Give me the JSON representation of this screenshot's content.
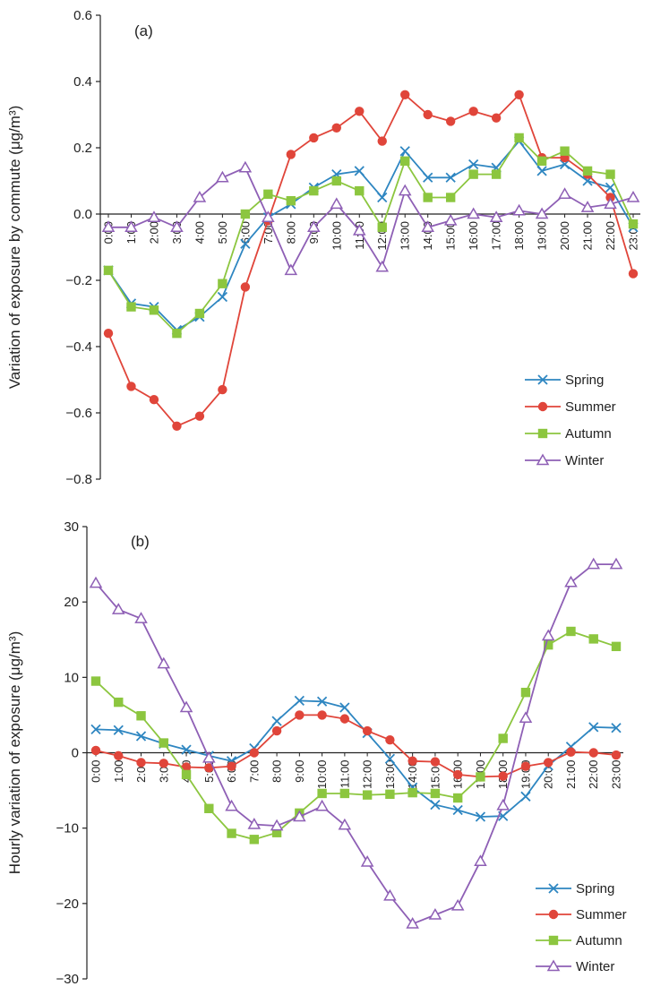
{
  "chart_data": [
    {
      "type": "line",
      "panel_label": "(a)",
      "title": "",
      "xlabel": "",
      "ylabel": "Variation of exposure by commute (μg/m³)",
      "ylim": [
        -0.8,
        0.6
      ],
      "yticks": [
        0.6,
        0.4,
        0.2,
        0.0,
        -0.2,
        -0.4,
        -0.6,
        -0.8
      ],
      "ytick_labels": [
        "0.6",
        "0.4",
        "0.2",
        "0.0",
        "−0.2",
        "−0.4",
        "−0.6",
        "−0.8"
      ],
      "categories": [
        "0:00",
        "1:00",
        "2:00",
        "3:00",
        "4:00",
        "5:00",
        "6:00",
        "7:00",
        "8:00",
        "9:00",
        "10:00",
        "11:00",
        "12:00",
        "13:00",
        "14:00",
        "15:00",
        "16:00",
        "17:00",
        "18:00",
        "19:00",
        "20:00",
        "21:00",
        "22:00",
        "23:00"
      ],
      "legend_position": "bottom-right",
      "grid": false,
      "series": [
        {
          "name": "Spring",
          "color": "#2e86c1",
          "marker": "x",
          "values": [
            -0.17,
            -0.27,
            -0.28,
            -0.35,
            -0.31,
            -0.25,
            -0.09,
            -0.01,
            0.03,
            0.08,
            0.12,
            0.13,
            0.05,
            0.19,
            0.11,
            0.11,
            0.15,
            0.14,
            0.22,
            0.13,
            0.15,
            0.1,
            0.08,
            -0.04
          ]
        },
        {
          "name": "Summer",
          "color": "#e0453a",
          "marker": "circle",
          "values": [
            -0.36,
            -0.52,
            -0.56,
            -0.64,
            -0.61,
            -0.53,
            -0.22,
            -0.02,
            0.18,
            0.23,
            0.26,
            0.31,
            0.22,
            0.36,
            0.3,
            0.28,
            0.31,
            0.29,
            0.36,
            0.17,
            0.17,
            0.12,
            0.05,
            -0.18
          ]
        },
        {
          "name": "Autumn",
          "color": "#8cc63f",
          "marker": "square",
          "values": [
            -0.17,
            -0.28,
            -0.29,
            -0.36,
            -0.3,
            -0.21,
            0.0,
            0.06,
            0.04,
            0.07,
            0.1,
            0.07,
            -0.04,
            0.16,
            0.05,
            0.05,
            0.12,
            0.12,
            0.23,
            0.16,
            0.19,
            0.13,
            0.12,
            -0.03
          ]
        },
        {
          "name": "Winter",
          "color": "#8e5fb5",
          "marker": "triangle",
          "values": [
            -0.04,
            -0.04,
            -0.01,
            -0.04,
            0.05,
            0.11,
            0.14,
            -0.01,
            -0.17,
            -0.04,
            0.03,
            -0.05,
            -0.16,
            0.07,
            -0.04,
            -0.02,
            0.0,
            -0.01,
            0.01,
            0.0,
            0.06,
            0.02,
            0.03,
            0.05
          ]
        }
      ]
    },
    {
      "type": "line",
      "panel_label": "(b)",
      "title": "",
      "xlabel": "",
      "ylabel": "Hourly variation of exposure (μg/m³)",
      "ylim": [
        -30,
        30
      ],
      "yticks": [
        30,
        20,
        10,
        0,
        -10,
        -20,
        -30
      ],
      "ytick_labels": [
        "30",
        "20",
        "10",
        "0",
        "−10",
        "−20",
        "−30"
      ],
      "categories": [
        "0:00",
        "1:00",
        "2:00",
        "3:00",
        "4:00",
        "5:00",
        "6:00",
        "7:00",
        "8:00",
        "9:00",
        "10:00",
        "11:00",
        "12:00",
        "13:00",
        "14:00",
        "15:00",
        "16:00",
        "17:00",
        "18:00",
        "19:00",
        "20:00",
        "21:00",
        "22:00",
        "23:00"
      ],
      "legend_position": "bottom-right",
      "grid": false,
      "series": [
        {
          "name": "Spring",
          "color": "#2e86c1",
          "marker": "x",
          "values": [
            3.1,
            3.0,
            2.2,
            1.2,
            0.4,
            -0.4,
            -1.1,
            0.6,
            4.2,
            6.9,
            6.8,
            6.0,
            2.6,
            -0.8,
            -4.6,
            -6.9,
            -7.6,
            -8.5,
            -8.4,
            -5.8,
            -1.7,
            0.8,
            3.4,
            3.3
          ]
        },
        {
          "name": "Summer",
          "color": "#e0453a",
          "marker": "circle",
          "values": [
            0.3,
            -0.4,
            -1.3,
            -1.4,
            -1.9,
            -2.0,
            -1.8,
            0.0,
            2.9,
            5.0,
            5.0,
            4.5,
            2.9,
            1.7,
            -1.1,
            -1.2,
            -2.9,
            -3.2,
            -3.1,
            -1.8,
            -1.3,
            0.1,
            0.0,
            -0.3
          ]
        },
        {
          "name": "Autumn",
          "color": "#8cc63f",
          "marker": "square",
          "values": [
            9.5,
            6.7,
            4.9,
            1.3,
            -2.9,
            -7.4,
            -10.7,
            -11.5,
            -10.6,
            -8.0,
            -5.4,
            -5.4,
            -5.6,
            -5.5,
            -5.3,
            -5.4,
            -6.0,
            -3.2,
            1.9,
            8.0,
            14.3,
            16.1,
            15.1,
            14.1
          ]
        },
        {
          "name": "Winter",
          "color": "#8e5fb5",
          "marker": "triangle",
          "values": [
            22.5,
            19.0,
            17.8,
            11.8,
            6.0,
            -0.7,
            -7.1,
            -9.5,
            -9.7,
            -8.5,
            -7.1,
            -9.6,
            -14.5,
            -19.0,
            -22.7,
            -21.5,
            -20.3,
            -14.4,
            -7.0,
            4.6,
            15.5,
            22.6,
            25.0,
            25.0
          ]
        }
      ]
    }
  ]
}
